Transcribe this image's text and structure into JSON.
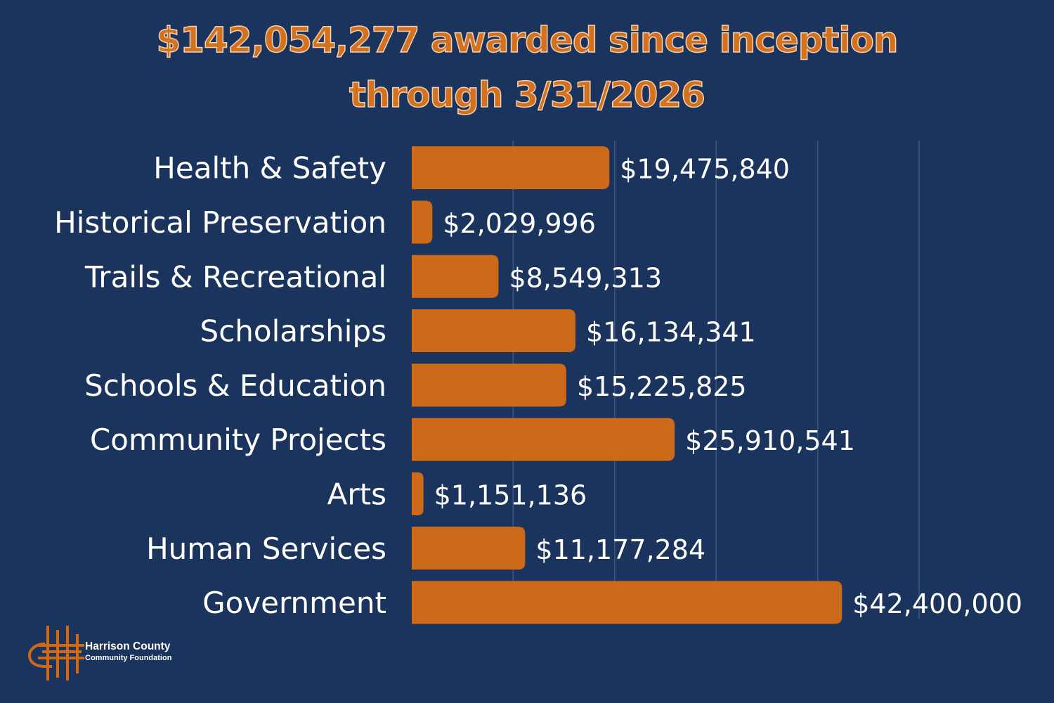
{
  "title": {
    "line1": "$142,054,277 awarded since inception",
    "line2": "through 3/31/2026"
  },
  "chart_data": {
    "type": "bar",
    "orientation": "horizontal",
    "categories": [
      "Health & Safety",
      "Historical Preservation",
      "Trails & Recreational",
      "Scholarships",
      "Schools & Education",
      "Community Projects",
      "Arts",
      "Human Services",
      "Government"
    ],
    "values": [
      19475840,
      2029996,
      8549313,
      16134341,
      15225825,
      25910541,
      1151136,
      11177284,
      42400000
    ],
    "data_labels": [
      "$19,475,840",
      "$2,029,996",
      "$8,549,313",
      "$16,134,341",
      "$15,225,825",
      "$25,910,541",
      "$1,151,136",
      "$11,177,284",
      "$42,400,000"
    ],
    "xlim": [
      0,
      50000000
    ],
    "grid": true,
    "legend": "none",
    "bar_color": "#cd6a1a",
    "gridline_color": "#3d5680",
    "label_color": "#ffffff"
  },
  "logo": {
    "line1": "Harrison County",
    "line2": "Community Foundation",
    "icon": "woven-h-logo-icon",
    "color": "#cd6a1a"
  },
  "colors": {
    "background": "#1b345e",
    "title": "#d2711f",
    "title_outline": "#f3d2b3"
  }
}
